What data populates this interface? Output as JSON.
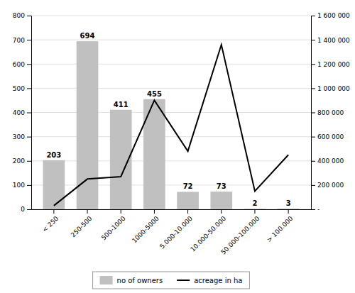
{
  "chart_data": {
    "type": "bar",
    "categories": [
      "< 250",
      "250-500",
      "500-1000",
      "1000-5000",
      "5.000-10.000",
      "10.000-50.000",
      "50.000-100.000",
      "> 100.000"
    ],
    "series": [
      {
        "name": "no of owners",
        "type": "bar",
        "color": "#c0c0c0",
        "data_labels": true,
        "values": [
          203,
          694,
          411,
          455,
          72,
          73,
          2,
          3
        ]
      },
      {
        "name": "acreage in ha",
        "type": "line",
        "color": "#000000",
        "axis": "y2",
        "values": [
          30000,
          250000,
          270000,
          900000,
          480000,
          1360000,
          150000,
          450000
        ]
      }
    ],
    "ylim": [
      0,
      800
    ],
    "yticks": [
      0,
      100,
      200,
      300,
      400,
      500,
      600,
      700,
      800
    ],
    "y2lim": [
      0,
      1600000
    ],
    "y2ticks": [
      {
        "value": 0,
        "label": "-"
      },
      {
        "value": 200000,
        "label": "200 000"
      },
      {
        "value": 400000,
        "label": "400 000"
      },
      {
        "value": 600000,
        "label": "600 000"
      },
      {
        "value": 800000,
        "label": "800 000"
      },
      {
        "value": 1000000,
        "label": "1 000 000"
      },
      {
        "value": 1200000,
        "label": "1 200 000"
      },
      {
        "value": 1400000,
        "label": "1 400 000"
      },
      {
        "value": 1600000,
        "label": "1 600 000"
      }
    ],
    "grid": true,
    "legend": "bottom"
  }
}
